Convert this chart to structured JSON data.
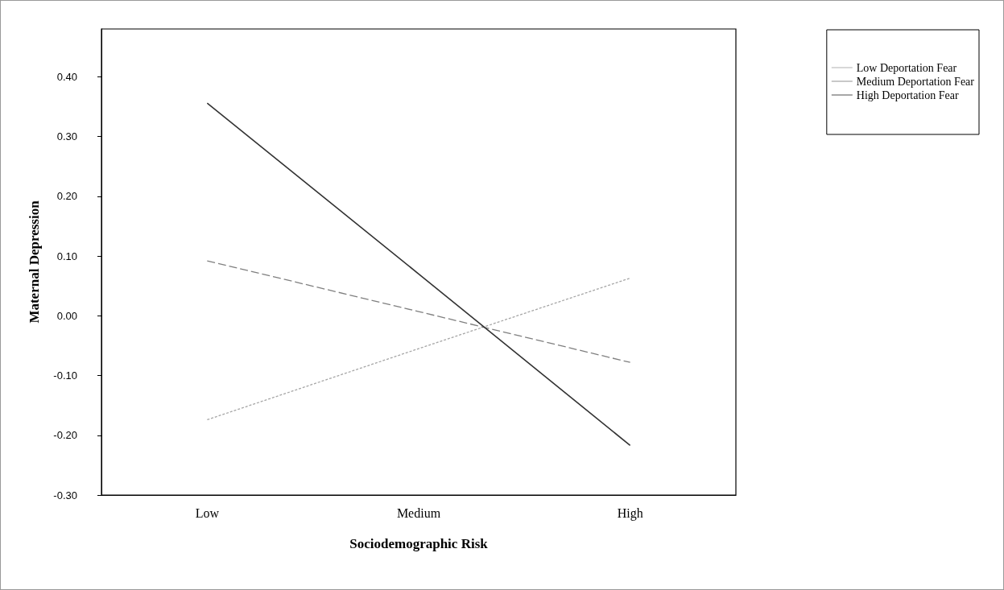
{
  "chart_data": {
    "type": "line",
    "xlabel": "Sociodemographic Risk",
    "ylabel": "Maternal Depression",
    "categories": [
      "Low",
      "Medium",
      "High"
    ],
    "series": [
      {
        "name": "Low Deportation Fear",
        "color": "#a6a6a6",
        "line_style": "dotted",
        "values": [
          -0.174,
          -0.055,
          0.063
        ]
      },
      {
        "name": "Medium Deportation Fear",
        "color": "#7f7f7f",
        "line_style": "dashed",
        "values": [
          0.092,
          0.007,
          -0.078
        ]
      },
      {
        "name": "High Deportation Fear",
        "color": "#333333",
        "line_style": "solid",
        "values": [
          0.356,
          0.07,
          -0.217
        ]
      }
    ],
    "ylim": [
      -0.3,
      0.48
    ],
    "yticks": [
      {
        "value": -0.3,
        "label": "-0.30"
      },
      {
        "value": -0.2,
        "label": "-0.20"
      },
      {
        "value": -0.1,
        "label": "-0.10"
      },
      {
        "value": 0,
        "label": "0.00"
      },
      {
        "value": 0.1,
        "label": "0.10"
      },
      {
        "value": 0.2,
        "label": "0.20"
      },
      {
        "value": 0.3,
        "label": "0.30"
      },
      {
        "value": 0.4,
        "label": "0.40"
      }
    ],
    "grid": false,
    "legend": "top right",
    "marker": "none"
  }
}
